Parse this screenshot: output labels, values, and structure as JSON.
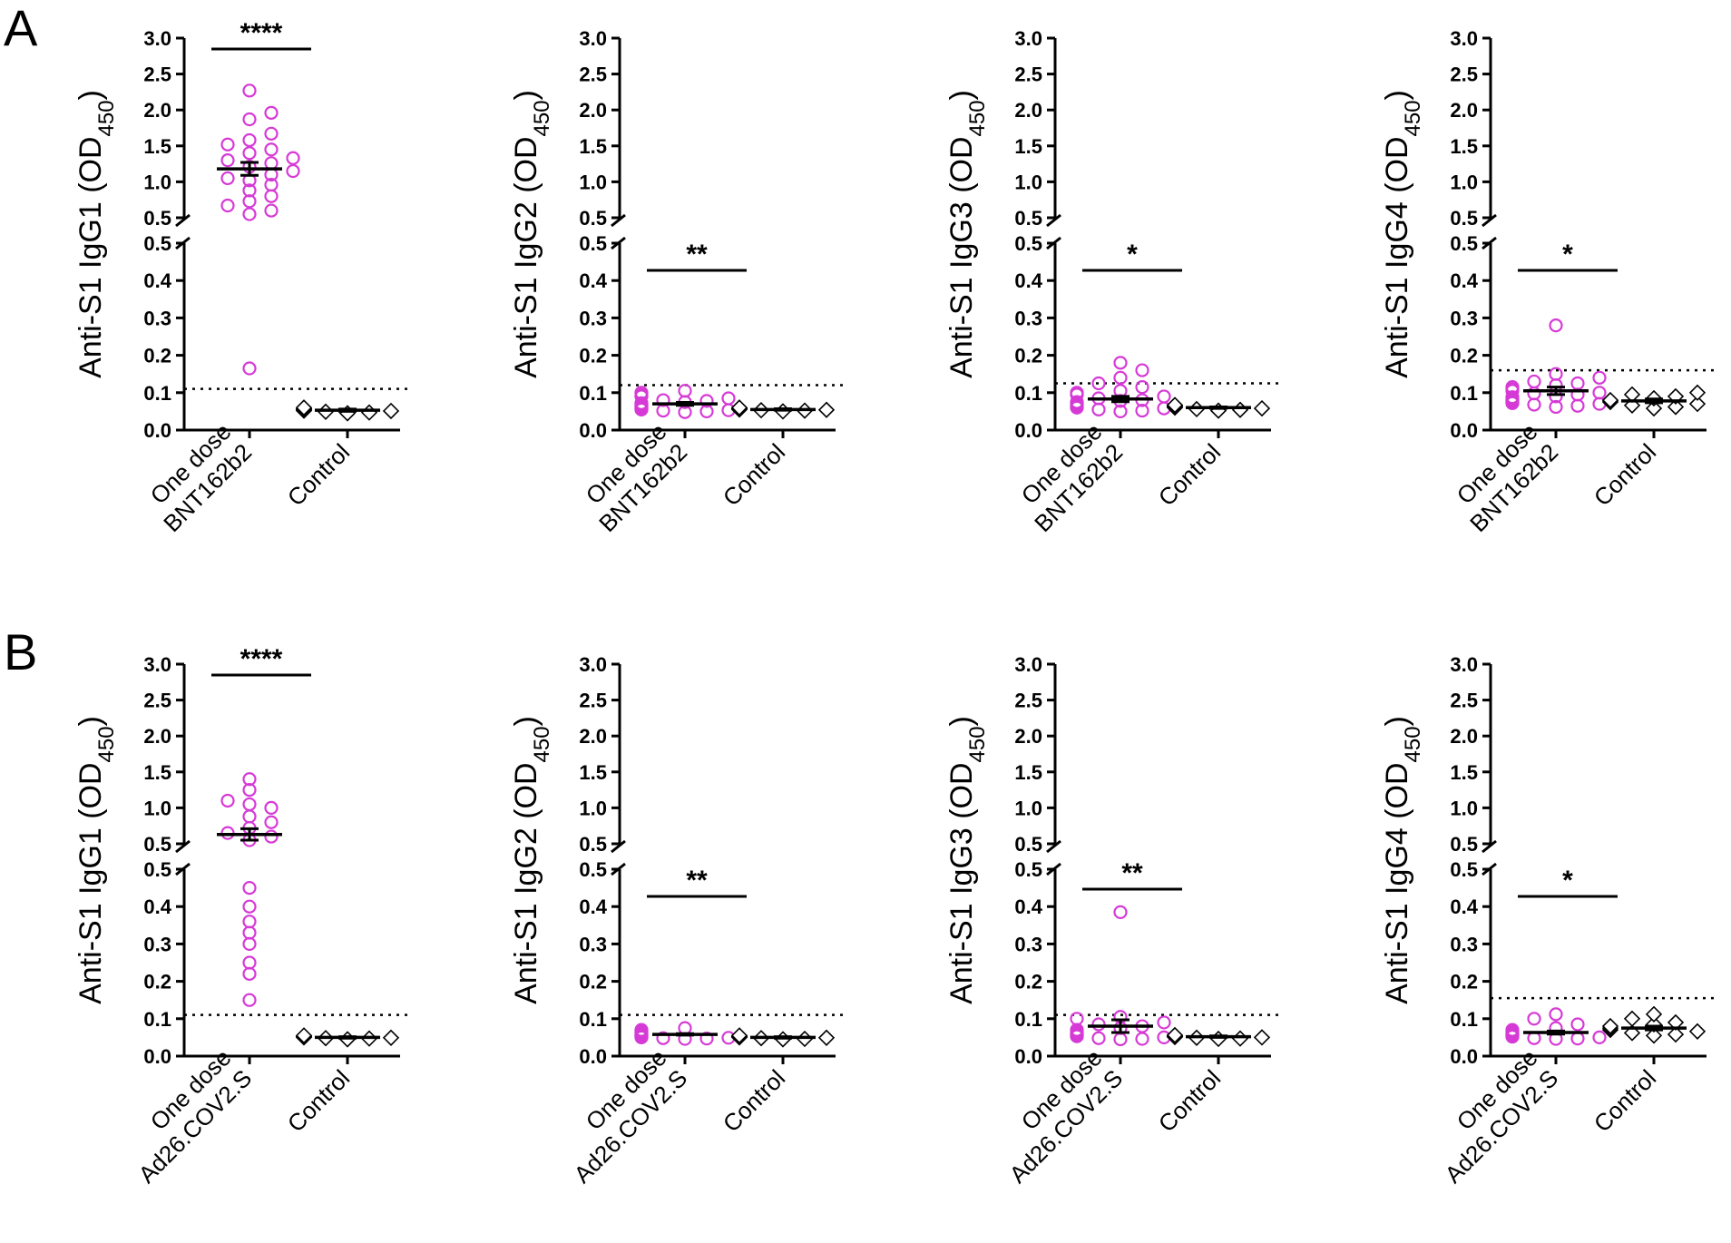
{
  "figure": {
    "panel_labels": [
      "A",
      "B"
    ],
    "vaccine_color": "#d63ad6",
    "control_color": "#000000"
  },
  "chart_data": [
    {
      "type": "scatter",
      "panel": "A",
      "ylabel": "Anti-S1 IgG1 (OD450)",
      "ylabel_main": "Anti-S1 IgG1 (OD",
      "ylabel_sub": "450",
      "ylabel_end": ")",
      "categories": [
        [
          "One dose",
          "BNT162b2"
        ],
        [
          "Control"
        ]
      ],
      "significance": "****",
      "threshold": 0.11,
      "ylim": [
        0,
        3.0
      ],
      "break": [
        0.5,
        0.5
      ],
      "lower_ticks": [
        "0.0",
        "0.1",
        "0.2",
        "0.3",
        "0.4",
        "0.5"
      ],
      "upper_ticks": [
        "0.5",
        "1.0",
        "1.5",
        "2.0",
        "2.5",
        "3.0"
      ],
      "series": [
        {
          "name": "One dose BNT162b2",
          "marker": "circle",
          "mean": 1.18,
          "sem": 0.09,
          "values": [
            2.27,
            1.96,
            1.87,
            1.67,
            1.58,
            1.52,
            1.45,
            1.4,
            1.33,
            1.3,
            1.26,
            1.21,
            1.15,
            1.1,
            1.05,
            1.02,
            0.96,
            0.88,
            0.8,
            0.73,
            0.67,
            0.6,
            0.55,
            0.165
          ]
        },
        {
          "name": "Control",
          "marker": "diamond",
          "mean": 0.053,
          "sem": 0.003,
          "values": [
            0.045,
            0.047,
            0.049,
            0.051,
            0.052,
            0.053,
            0.055,
            0.056,
            0.058,
            0.06
          ]
        }
      ]
    },
    {
      "type": "scatter",
      "panel": "A",
      "ylabel": "Anti-S1 IgG2 (OD450)",
      "ylabel_main": "Anti-S1 IgG2 (OD",
      "ylabel_sub": "450",
      "ylabel_end": ")",
      "categories": [
        [
          "One dose",
          "BNT162b2"
        ],
        [
          "Control"
        ]
      ],
      "significance": "**",
      "threshold": 0.12,
      "ylim": [
        0,
        3.0
      ],
      "break": [
        0.5,
        0.5
      ],
      "lower_ticks": [
        "0.0",
        "0.1",
        "0.2",
        "0.3",
        "0.4",
        "0.5"
      ],
      "upper_ticks": [
        "0.5",
        "1.0",
        "1.5",
        "2.0",
        "2.5",
        "3.0"
      ],
      "series": [
        {
          "name": "One dose BNT162b2",
          "marker": "circle",
          "mean": 0.07,
          "sem": 0.004,
          "values": [
            0.105,
            0.1,
            0.095,
            0.09,
            0.085,
            0.08,
            0.078,
            0.075,
            0.072,
            0.07,
            0.068,
            0.066,
            0.064,
            0.062,
            0.06,
            0.058,
            0.056,
            0.055,
            0.053,
            0.052,
            0.05,
            0.048
          ]
        },
        {
          "name": "Control",
          "marker": "diamond",
          "mean": 0.055,
          "sem": 0.002,
          "values": [
            0.05,
            0.052,
            0.053,
            0.054,
            0.055,
            0.056,
            0.057,
            0.058,
            0.059,
            0.06
          ]
        }
      ]
    },
    {
      "type": "scatter",
      "panel": "A",
      "ylabel": "Anti-S1 IgG3 (OD450)",
      "ylabel_main": "Anti-S1 IgG3 (OD",
      "ylabel_sub": "450",
      "ylabel_end": ")",
      "categories": [
        [
          "One dose",
          "BNT162b2"
        ],
        [
          "Control"
        ]
      ],
      "significance": "*",
      "threshold": 0.125,
      "ylim": [
        0,
        3.0
      ],
      "break": [
        0.5,
        0.5
      ],
      "lower_ticks": [
        "0.0",
        "0.1",
        "0.2",
        "0.3",
        "0.4",
        "0.5"
      ],
      "upper_ticks": [
        "0.5",
        "1.0",
        "1.5",
        "2.0",
        "2.5",
        "3.0"
      ],
      "series": [
        {
          "name": "One dose BNT162b2",
          "marker": "circle",
          "mean": 0.083,
          "sem": 0.007,
          "values": [
            0.18,
            0.16,
            0.14,
            0.125,
            0.115,
            0.105,
            0.1,
            0.095,
            0.09,
            0.085,
            0.08,
            0.078,
            0.075,
            0.07,
            0.066,
            0.063,
            0.06,
            0.058,
            0.055,
            0.052,
            0.05
          ]
        },
        {
          "name": "Control",
          "marker": "diamond",
          "mean": 0.06,
          "sem": 0.002,
          "values": [
            0.052,
            0.054,
            0.056,
            0.058,
            0.06,
            0.061,
            0.062,
            0.064,
            0.065,
            0.067
          ]
        }
      ]
    },
    {
      "type": "scatter",
      "panel": "A",
      "ylabel": "Anti-S1 IgG4 (OD450)",
      "ylabel_main": "Anti-S1 IgG4 (OD",
      "ylabel_sub": "450",
      "ylabel_end": ")",
      "categories": [
        [
          "One dose",
          "BNT162b2"
        ],
        [
          "Control"
        ]
      ],
      "significance": "*",
      "threshold": 0.16,
      "ylim": [
        0,
        3.0
      ],
      "break": [
        0.5,
        0.5
      ],
      "lower_ticks": [
        "0.0",
        "0.1",
        "0.2",
        "0.3",
        "0.4",
        "0.5"
      ],
      "upper_ticks": [
        "0.5",
        "1.0",
        "1.5",
        "2.0",
        "2.5",
        "3.0"
      ],
      "series": [
        {
          "name": "One dose BNT162b2",
          "marker": "circle",
          "mean": 0.105,
          "sem": 0.01,
          "values": [
            0.28,
            0.15,
            0.14,
            0.13,
            0.125,
            0.12,
            0.115,
            0.11,
            0.105,
            0.1,
            0.098,
            0.095,
            0.09,
            0.088,
            0.085,
            0.08,
            0.078,
            0.075,
            0.072,
            0.07,
            0.068,
            0.065,
            0.062
          ]
        },
        {
          "name": "Control",
          "marker": "diamond",
          "mean": 0.078,
          "sem": 0.005,
          "values": [
            0.1,
            0.095,
            0.09,
            0.085,
            0.08,
            0.078,
            0.075,
            0.07,
            0.066,
            0.062,
            0.058
          ]
        }
      ]
    },
    {
      "type": "scatter",
      "panel": "B",
      "ylabel": "Anti-S1 IgG1 (OD450)",
      "ylabel_main": "Anti-S1 IgG1 (OD",
      "ylabel_sub": "450",
      "ylabel_end": ")",
      "categories": [
        [
          "One dose",
          "Ad26.COV2.S"
        ],
        [
          "Control"
        ]
      ],
      "significance": "****",
      "threshold": 0.11,
      "ylim": [
        0,
        3.0
      ],
      "break": [
        0.5,
        0.5
      ],
      "lower_ticks": [
        "0.0",
        "0.1",
        "0.2",
        "0.3",
        "0.4",
        "0.5"
      ],
      "upper_ticks": [
        "0.5",
        "1.0",
        "1.5",
        "2.0",
        "2.5",
        "3.0"
      ],
      "series": [
        {
          "name": "One dose Ad26.COV2.S",
          "marker": "circle",
          "mean": 0.63,
          "sem": 0.08,
          "values": [
            1.4,
            1.25,
            1.1,
            1.05,
            1.0,
            0.88,
            0.8,
            0.72,
            0.65,
            0.6,
            0.55,
            0.45,
            0.4,
            0.36,
            0.33,
            0.3,
            0.25,
            0.22,
            0.15
          ]
        },
        {
          "name": "Control",
          "marker": "diamond",
          "mean": 0.05,
          "sem": 0.002,
          "values": [
            0.045,
            0.047,
            0.048,
            0.049,
            0.05,
            0.051,
            0.052,
            0.053,
            0.054,
            0.055
          ]
        }
      ]
    },
    {
      "type": "scatter",
      "panel": "B",
      "ylabel": "Anti-S1 IgG2 (OD450)",
      "ylabel_main": "Anti-S1 IgG2 (OD",
      "ylabel_sub": "450",
      "ylabel_end": ")",
      "categories": [
        [
          "One dose",
          "Ad26.COV2.S"
        ],
        [
          "Control"
        ]
      ],
      "significance": "**",
      "threshold": 0.11,
      "ylim": [
        0,
        3.0
      ],
      "break": [
        0.5,
        0.5
      ],
      "lower_ticks": [
        "0.0",
        "0.1",
        "0.2",
        "0.3",
        "0.4",
        "0.5"
      ],
      "upper_ticks": [
        "0.5",
        "1.0",
        "1.5",
        "2.0",
        "2.5",
        "3.0"
      ],
      "series": [
        {
          "name": "One dose Ad26.COV2.S",
          "marker": "circle",
          "mean": 0.058,
          "sem": 0.002,
          "values": [
            0.075,
            0.07,
            0.068,
            0.065,
            0.062,
            0.06,
            0.058,
            0.056,
            0.055,
            0.054,
            0.052,
            0.05,
            0.049,
            0.048,
            0.047,
            0.046
          ]
        },
        {
          "name": "Control",
          "marker": "diamond",
          "mean": 0.05,
          "sem": 0.002,
          "values": [
            0.045,
            0.046,
            0.048,
            0.049,
            0.05,
            0.051,
            0.052,
            0.053,
            0.054,
            0.055
          ]
        }
      ]
    },
    {
      "type": "scatter",
      "panel": "B",
      "ylabel": "Anti-S1 IgG3 (OD450)",
      "ylabel_main": "Anti-S1 IgG3 (OD",
      "ylabel_sub": "450",
      "ylabel_end": ")",
      "categories": [
        [
          "One dose",
          "Ad26.COV2.S"
        ],
        [
          "Control"
        ]
      ],
      "significance": "**",
      "threshold": 0.11,
      "ylim": [
        0,
        3.0
      ],
      "break": [
        0.5,
        0.5
      ],
      "lower_ticks": [
        "0.0",
        "0.1",
        "0.2",
        "0.3",
        "0.4",
        "0.5"
      ],
      "upper_ticks": [
        "0.5",
        "1.0",
        "1.5",
        "2.0",
        "2.5",
        "3.0"
      ],
      "series": [
        {
          "name": "One dose Ad26.COV2.S",
          "marker": "circle",
          "mean": 0.08,
          "sem": 0.017,
          "values": [
            0.385,
            0.105,
            0.1,
            0.09,
            0.085,
            0.08,
            0.075,
            0.07,
            0.065,
            0.06,
            0.058,
            0.055,
            0.053,
            0.05,
            0.048,
            0.046,
            0.045
          ]
        },
        {
          "name": "Control",
          "marker": "diamond",
          "mean": 0.052,
          "sem": 0.002,
          "values": [
            0.046,
            0.047,
            0.049,
            0.05,
            0.051,
            0.052,
            0.053,
            0.054,
            0.055,
            0.056
          ]
        }
      ]
    },
    {
      "type": "scatter",
      "panel": "B",
      "ylabel": "Anti-S1 IgG4 (OD450)",
      "ylabel_main": "Anti-S1 IgG4 (OD",
      "ylabel_sub": "450",
      "ylabel_end": ")",
      "categories": [
        [
          "One dose",
          "Ad26.COV2.S"
        ],
        [
          "Control"
        ]
      ],
      "significance": "*",
      "threshold": 0.155,
      "ylim": [
        0,
        3.0
      ],
      "break": [
        0.5,
        0.5
      ],
      "lower_ticks": [
        "0.0",
        "0.1",
        "0.2",
        "0.3",
        "0.4",
        "0.5"
      ],
      "upper_ticks": [
        "0.5",
        "1.0",
        "1.5",
        "2.0",
        "2.5",
        "3.0"
      ],
      "series": [
        {
          "name": "One dose Ad26.COV2.S",
          "marker": "circle",
          "mean": 0.063,
          "sem": 0.004,
          "values": [
            0.112,
            0.1,
            0.085,
            0.075,
            0.07,
            0.066,
            0.063,
            0.06,
            0.058,
            0.056,
            0.054,
            0.052,
            0.05,
            0.048,
            0.047,
            0.046
          ]
        },
        {
          "name": "Control",
          "marker": "diamond",
          "mean": 0.075,
          "sem": 0.005,
          "values": [
            0.112,
            0.1,
            0.09,
            0.085,
            0.08,
            0.075,
            0.07,
            0.066,
            0.062,
            0.058,
            0.055
          ]
        }
      ]
    }
  ]
}
